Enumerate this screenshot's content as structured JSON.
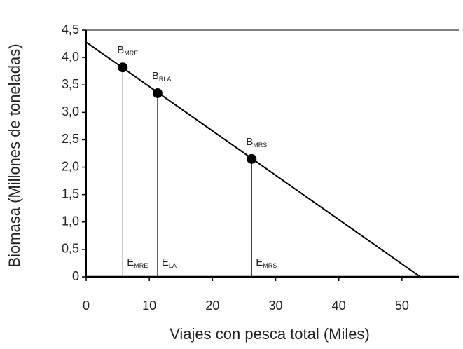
{
  "chart_data": {
    "type": "line",
    "xlabel": "Viajes con pesca total (Miles)",
    "ylabel": "Biomasa (Millones de toneladas)",
    "xlim": [
      0,
      59
    ],
    "ylim": [
      0,
      4.5
    ],
    "xticks": [
      0,
      10,
      20,
      30,
      40,
      50
    ],
    "yticks": [
      0,
      {
        "value": 0.5,
        "label": "0,5"
      },
      {
        "value": 1,
        "label": "1,0"
      },
      {
        "value": 1.5,
        "label": "1,5"
      },
      {
        "value": 2,
        "label": "2,0"
      },
      {
        "value": 2.5,
        "label": "2,5"
      },
      {
        "value": 3,
        "label": "3,0"
      },
      {
        "value": 3.5,
        "label": "3,5"
      },
      {
        "value": 4,
        "label": "4,0"
      },
      {
        "value": 4.5,
        "label": "4,5"
      }
    ],
    "series": [
      {
        "color": "#000000",
        "x": [
          0,
          52.9
        ],
        "values": [
          4.28,
          0
        ]
      }
    ],
    "points": [
      {
        "label": "B",
        "sub": "MRE",
        "x": 5.8,
        "y": 3.82,
        "drop_label": "E",
        "drop_sub": "MRE"
      },
      {
        "label": "B",
        "sub": "RLA",
        "x": 11.3,
        "y": 3.35,
        "drop_label": "E",
        "drop_sub": "LA"
      },
      {
        "label": "B",
        "sub": "MRS",
        "x": 26.2,
        "y": 2.15,
        "drop_label": "E",
        "drop_sub": "MRS"
      }
    ]
  }
}
